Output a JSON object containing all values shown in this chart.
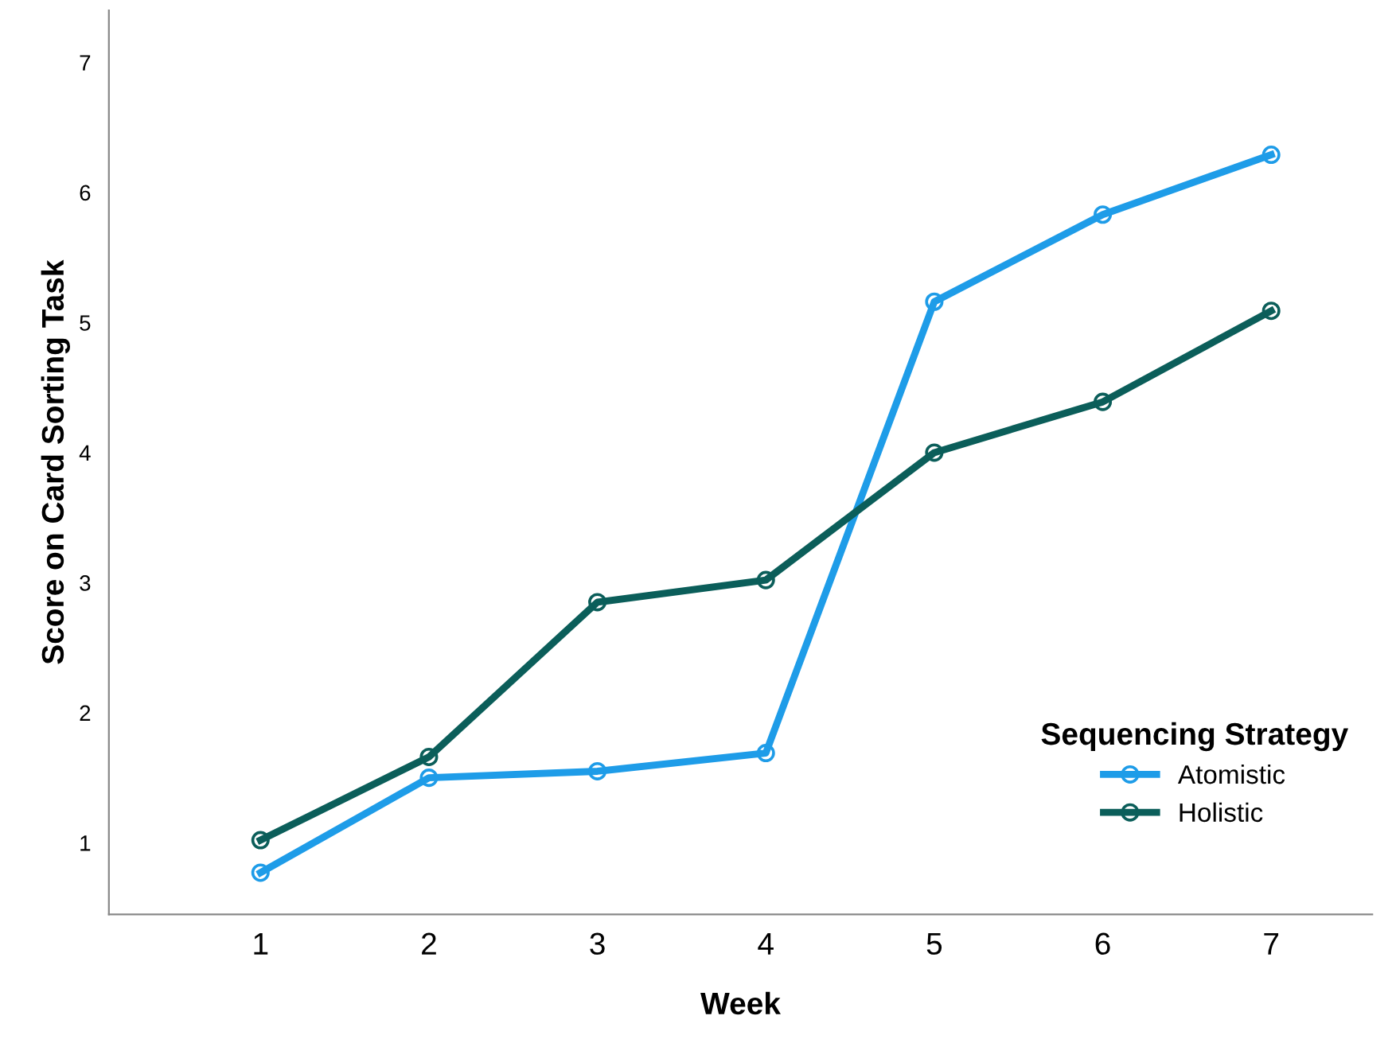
{
  "chart_data": {
    "type": "line",
    "xlabel": "Week",
    "ylabel": "Score on Card Sorting Task",
    "legend_title": "Sequencing Strategy",
    "x": [
      1,
      2,
      3,
      4,
      5,
      6,
      7
    ],
    "series": [
      {
        "name": "Atomistic",
        "color": "#1e9ce8",
        "values": [
          0.77,
          1.5,
          1.55,
          1.69,
          5.16,
          5.83,
          6.29
        ]
      },
      {
        "name": "Holistic",
        "color": "#0b5e5a",
        "values": [
          1.02,
          1.66,
          2.85,
          3.02,
          4.0,
          4.39,
          5.09
        ]
      }
    ],
    "xlim": [
      0.1,
      7.6
    ],
    "xticks": [
      1,
      2,
      3,
      4,
      5,
      6,
      7
    ],
    "ylim": [
      0.45,
      7.4
    ],
    "yticks": [
      1,
      2,
      3,
      4,
      5,
      6,
      7
    ],
    "marker": "circle",
    "line_style": "solid",
    "legend": "bottom right",
    "grid": false
  }
}
